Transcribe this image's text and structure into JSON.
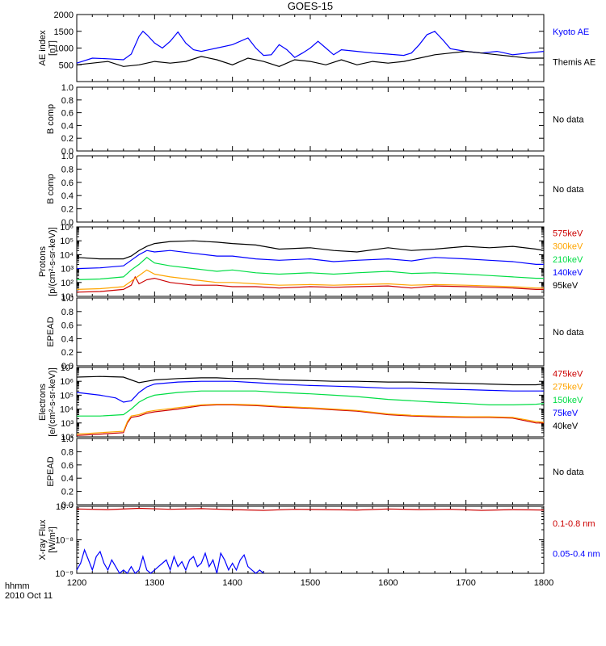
{
  "title": "GOES-15",
  "footer": {
    "time_label": "hhmm",
    "date_label": "2010 Oct 11"
  },
  "colors": {
    "black": "#000000",
    "blue": "#0000ff",
    "red": "#cc0000",
    "orange": "#ffa500",
    "green": "#00dd44"
  },
  "chart_data": [
    {
      "id": "ae",
      "type": "line",
      "ylabel": [
        "AE index",
        "[nT]"
      ],
      "yscale": "linear",
      "ylim": [
        0,
        2000
      ],
      "yticks": [
        500,
        1000,
        1500,
        2000
      ],
      "xlim": [
        1200,
        1800
      ],
      "series": [
        {
          "name": "Kyoto AE",
          "color": "#0000ff",
          "x": [
            1200,
            1220,
            1240,
            1260,
            1270,
            1280,
            1285,
            1290,
            1300,
            1310,
            1320,
            1330,
            1340,
            1350,
            1360,
            1380,
            1400,
            1420,
            1430,
            1440,
            1450,
            1460,
            1470,
            1480,
            1490,
            1500,
            1510,
            1520,
            1530,
            1540,
            1560,
            1580,
            1600,
            1620,
            1630,
            1640,
            1650,
            1660,
            1670,
            1680,
            1700,
            1720,
            1740,
            1760,
            1780,
            1800
          ],
          "y": [
            550,
            700,
            680,
            650,
            820,
            1350,
            1500,
            1400,
            1150,
            1000,
            1200,
            1480,
            1150,
            950,
            900,
            1000,
            1100,
            1300,
            1000,
            780,
            800,
            1100,
            950,
            720,
            850,
            1000,
            1200,
            1000,
            800,
            950,
            900,
            850,
            820,
            780,
            850,
            1100,
            1400,
            1500,
            1250,
            980,
            900,
            850,
            900,
            800,
            850,
            900
          ]
        },
        {
          "name": "Themis AE",
          "color": "#000000",
          "x": [
            1200,
            1220,
            1240,
            1260,
            1280,
            1300,
            1320,
            1340,
            1360,
            1380,
            1400,
            1420,
            1440,
            1460,
            1480,
            1500,
            1520,
            1540,
            1560,
            1580,
            1600,
            1620,
            1640,
            1660,
            1680,
            1700,
            1720,
            1740,
            1760,
            1780,
            1800
          ],
          "y": [
            500,
            550,
            600,
            450,
            500,
            600,
            550,
            600,
            750,
            650,
            500,
            700,
            600,
            450,
            650,
            600,
            500,
            650,
            500,
            600,
            550,
            600,
            700,
            800,
            850,
            900,
            850,
            800,
            750,
            700,
            700
          ]
        }
      ]
    },
    {
      "id": "bcomp1",
      "type": "line",
      "ylabel": [
        "B comp"
      ],
      "yscale": "linear",
      "ylim": [
        0,
        1
      ],
      "yticks": [
        0.0,
        0.2,
        0.4,
        0.6,
        0.8,
        1.0
      ],
      "ytick_labels": [
        "0.0",
        "0.2",
        "0.4",
        "0.6",
        "0.8",
        "1.0"
      ],
      "xlim": [
        1200,
        1800
      ],
      "note": "No data",
      "series": []
    },
    {
      "id": "bcomp2",
      "type": "line",
      "ylabel": [
        "B comp"
      ],
      "yscale": "linear",
      "ylim": [
        0,
        1
      ],
      "yticks": [
        0.0,
        0.2,
        0.4,
        0.6,
        0.8,
        1.0
      ],
      "ytick_labels": [
        "0.0",
        "0.2",
        "0.4",
        "0.6",
        "0.8",
        "1.0"
      ],
      "xlim": [
        1200,
        1800
      ],
      "note": "No data",
      "series": []
    },
    {
      "id": "protons",
      "type": "line",
      "ylabel": [
        "Protons",
        "[p/(cm²-s-sr-keV)]"
      ],
      "yscale": "log",
      "ylim": [
        1,
        6
      ],
      "yticks": [
        1,
        2,
        3,
        4,
        5,
        6
      ],
      "ytick_labels": [
        "10¹",
        "10²",
        "10³",
        "10⁴",
        "10⁵",
        "10⁶"
      ],
      "xlim": [
        1200,
        1800
      ],
      "series": [
        {
          "name": "575keV",
          "color": "#cc0000",
          "x": [
            1200,
            1230,
            1260,
            1270,
            1275,
            1280,
            1290,
            1300,
            1320,
            1350,
            1380,
            1400,
            1430,
            1460,
            1500,
            1530,
            1560,
            1600,
            1630,
            1660,
            1700,
            1730,
            1760,
            1790,
            1800
          ],
          "y": [
            1.3,
            1.35,
            1.5,
            1.8,
            2.4,
            1.9,
            2.2,
            2.3,
            2.0,
            1.8,
            1.8,
            1.7,
            1.7,
            1.6,
            1.7,
            1.65,
            1.7,
            1.75,
            1.6,
            1.75,
            1.7,
            1.65,
            1.6,
            1.5,
            1.5
          ]
        },
        {
          "name": "300keV",
          "color": "#ffa500",
          "x": [
            1200,
            1230,
            1260,
            1270,
            1280,
            1290,
            1300,
            1320,
            1350,
            1380,
            1400,
            1430,
            1460,
            1500,
            1530,
            1560,
            1600,
            1630,
            1660,
            1700,
            1730,
            1760,
            1790,
            1800
          ],
          "y": [
            1.5,
            1.55,
            1.7,
            2.1,
            2.5,
            2.9,
            2.6,
            2.4,
            2.2,
            2.0,
            2.0,
            1.9,
            1.8,
            1.85,
            1.8,
            1.85,
            1.9,
            1.8,
            1.85,
            1.8,
            1.75,
            1.7,
            1.6,
            1.6
          ]
        },
        {
          "name": "210keV",
          "color": "#00dd44",
          "x": [
            1200,
            1230,
            1260,
            1270,
            1280,
            1290,
            1300,
            1320,
            1350,
            1380,
            1400,
            1430,
            1460,
            1500,
            1530,
            1560,
            1600,
            1630,
            1660,
            1700,
            1730,
            1760,
            1790,
            1800
          ],
          "y": [
            2.2,
            2.25,
            2.4,
            2.9,
            3.3,
            3.8,
            3.4,
            3.2,
            3.0,
            2.8,
            2.9,
            2.7,
            2.6,
            2.7,
            2.6,
            2.7,
            2.8,
            2.65,
            2.7,
            2.6,
            2.5,
            2.4,
            2.3,
            2.3
          ]
        },
        {
          "name": "140keV",
          "color": "#0000ff",
          "x": [
            1200,
            1230,
            1260,
            1270,
            1280,
            1290,
            1300,
            1320,
            1350,
            1380,
            1400,
            1430,
            1460,
            1500,
            1530,
            1560,
            1600,
            1630,
            1660,
            1700,
            1730,
            1760,
            1790,
            1800
          ],
          "y": [
            3.0,
            3.05,
            3.2,
            3.6,
            4.0,
            4.3,
            4.2,
            4.3,
            4.1,
            3.9,
            3.9,
            3.7,
            3.6,
            3.7,
            3.5,
            3.6,
            3.7,
            3.55,
            3.8,
            3.7,
            3.6,
            3.5,
            3.3,
            3.3
          ]
        },
        {
          "name": "95keV",
          "color": "#000000",
          "x": [
            1200,
            1230,
            1260,
            1270,
            1280,
            1290,
            1300,
            1320,
            1350,
            1380,
            1400,
            1430,
            1460,
            1500,
            1530,
            1560,
            1600,
            1630,
            1660,
            1700,
            1730,
            1760,
            1790,
            1800
          ],
          "y": [
            3.8,
            3.7,
            3.7,
            3.9,
            4.3,
            4.6,
            4.8,
            4.95,
            5.0,
            4.9,
            4.8,
            4.7,
            4.4,
            4.5,
            4.3,
            4.2,
            4.5,
            4.3,
            4.4,
            4.6,
            4.5,
            4.6,
            4.4,
            4.3
          ]
        }
      ]
    },
    {
      "id": "epead1",
      "type": "line",
      "ylabel": [
        "EPEAD"
      ],
      "yscale": "linear",
      "ylim": [
        0,
        1
      ],
      "yticks": [
        0.0,
        0.2,
        0.4,
        0.6,
        0.8,
        1.0
      ],
      "ytick_labels": [
        "0.0",
        "0.2",
        "0.4",
        "0.6",
        "0.8",
        "1.0"
      ],
      "xlim": [
        1200,
        1800
      ],
      "note": "No data",
      "series": []
    },
    {
      "id": "electrons",
      "type": "line",
      "ylabel": [
        "Electrons",
        "[e/(cm²-s-sr-keV)]"
      ],
      "yscale": "log",
      "ylim": [
        2,
        7
      ],
      "yticks": [
        2,
        3,
        4,
        5,
        6,
        7
      ],
      "ytick_labels": [
        "10²",
        "10³",
        "10⁴",
        "10⁵",
        "10⁶",
        "10⁷"
      ],
      "xlim": [
        1200,
        1800
      ],
      "series": [
        {
          "name": "475keV",
          "color": "#cc0000",
          "x": [
            1200,
            1230,
            1260,
            1265,
            1270,
            1280,
            1290,
            1300,
            1330,
            1360,
            1380,
            1400,
            1430,
            1460,
            1500,
            1530,
            1560,
            1600,
            1630,
            1660,
            1700,
            1730,
            1760,
            1790,
            1800
          ],
          "y": [
            2.1,
            2.2,
            2.3,
            3.0,
            3.4,
            3.5,
            3.7,
            3.8,
            4.0,
            4.25,
            4.3,
            4.3,
            4.25,
            4.15,
            4.05,
            3.95,
            3.85,
            3.6,
            3.5,
            3.45,
            3.4,
            3.4,
            3.35,
            3.0,
            3.0
          ]
        },
        {
          "name": "275keV",
          "color": "#ffa500",
          "x": [
            1200,
            1230,
            1260,
            1265,
            1270,
            1280,
            1290,
            1300,
            1330,
            1360,
            1380,
            1400,
            1430,
            1460,
            1500,
            1530,
            1560,
            1600,
            1630,
            1660,
            1700,
            1730,
            1760,
            1790,
            1800
          ],
          "y": [
            2.2,
            2.3,
            2.4,
            3.1,
            3.5,
            3.6,
            3.8,
            3.9,
            4.1,
            4.3,
            4.35,
            4.35,
            4.3,
            4.2,
            4.1,
            4.0,
            3.9,
            3.65,
            3.55,
            3.5,
            3.45,
            3.45,
            3.4,
            3.1,
            3.05
          ]
        },
        {
          "name": "150keV",
          "color": "#00dd44",
          "x": [
            1200,
            1230,
            1260,
            1270,
            1280,
            1290,
            1300,
            1330,
            1360,
            1380,
            1400,
            1430,
            1460,
            1500,
            1530,
            1560,
            1600,
            1630,
            1660,
            1700,
            1730,
            1760,
            1790,
            1800
          ],
          "y": [
            3.5,
            3.5,
            3.6,
            4.0,
            4.5,
            4.8,
            5.0,
            5.2,
            5.3,
            5.3,
            5.3,
            5.3,
            5.2,
            5.1,
            5.0,
            4.9,
            4.7,
            4.6,
            4.5,
            4.4,
            4.3,
            4.3,
            4.35,
            4.4
          ]
        },
        {
          "name": "75keV",
          "color": "#0000ff",
          "x": [
            1200,
            1230,
            1250,
            1260,
            1270,
            1280,
            1290,
            1300,
            1330,
            1360,
            1380,
            1400,
            1430,
            1460,
            1500,
            1530,
            1560,
            1600,
            1630,
            1660,
            1700,
            1730,
            1760,
            1790,
            1800
          ],
          "y": [
            5.2,
            5.0,
            4.8,
            4.5,
            4.6,
            5.2,
            5.6,
            5.8,
            5.95,
            6.0,
            6.0,
            6.0,
            5.9,
            5.8,
            5.7,
            5.65,
            5.6,
            5.5,
            5.5,
            5.45,
            5.4,
            5.35,
            5.3,
            5.3,
            5.3
          ]
        },
        {
          "name": "40keV",
          "color": "#000000",
          "x": [
            1200,
            1230,
            1260,
            1270,
            1280,
            1290,
            1300,
            1330,
            1360,
            1380,
            1400,
            1430,
            1460,
            1500,
            1530,
            1560,
            1600,
            1630,
            1660,
            1700,
            1730,
            1760,
            1790,
            1800
          ],
          "y": [
            6.3,
            6.35,
            6.3,
            6.1,
            5.9,
            6.0,
            6.1,
            6.2,
            6.25,
            6.25,
            6.2,
            6.2,
            6.1,
            6.05,
            6.0,
            6.0,
            5.95,
            5.95,
            5.9,
            5.85,
            5.8,
            5.75,
            5.75,
            5.8
          ]
        }
      ]
    },
    {
      "id": "epead2",
      "type": "line",
      "ylabel": [
        "EPEAD"
      ],
      "yscale": "linear",
      "ylim": [
        0,
        1
      ],
      "yticks": [
        0.0,
        0.2,
        0.4,
        0.6,
        0.8,
        1.0
      ],
      "ytick_labels": [
        "0.0",
        "0.2",
        "0.4",
        "0.6",
        "0.8",
        "1.0"
      ],
      "xlim": [
        1200,
        1800
      ],
      "note": "No data",
      "series": []
    },
    {
      "id": "xray",
      "type": "line",
      "ylabel": [
        "X-ray Flux",
        "[W/m²]"
      ],
      "yscale": "log",
      "ylim": [
        -9,
        -7
      ],
      "yticks": [
        -9,
        -8,
        -7
      ],
      "ytick_labels": [
        "10⁻⁹",
        "10⁻⁸",
        "10⁻⁷"
      ],
      "xlim": [
        1200,
        1800
      ],
      "series": [
        {
          "name": "0.1-0.8 nm",
          "color": "#cc0000",
          "x": [
            1200,
            1240,
            1280,
            1320,
            1360,
            1400,
            1440,
            1480,
            1520,
            1560,
            1600,
            1640,
            1680,
            1720,
            1760,
            1800
          ],
          "y": [
            -7.08,
            -7.1,
            -7.06,
            -7.09,
            -7.07,
            -7.1,
            -7.12,
            -7.09,
            -7.1,
            -7.11,
            -7.08,
            -7.1,
            -7.09,
            -7.12,
            -7.1,
            -7.11
          ]
        },
        {
          "name": "0.05-0.4 nm",
          "color": "#0000ff",
          "x": [
            1200,
            1205,
            1210,
            1215,
            1220,
            1225,
            1230,
            1235,
            1240,
            1245,
            1250,
            1255,
            1260,
            1265,
            1270,
            1275,
            1280,
            1285,
            1290,
            1295,
            1300,
            1305,
            1310,
            1315,
            1320,
            1325,
            1330,
            1335,
            1340,
            1345,
            1350,
            1355,
            1360,
            1365,
            1370,
            1375,
            1380,
            1385,
            1390,
            1395,
            1400,
            1405,
            1410,
            1415,
            1420,
            1425,
            1430,
            1435,
            1440
          ],
          "y": [
            -8.9,
            -8.7,
            -8.3,
            -8.6,
            -8.9,
            -8.5,
            -8.35,
            -8.7,
            -8.9,
            -8.6,
            -8.8,
            -9.0,
            -8.9,
            -9.0,
            -8.8,
            -9.0,
            -8.9,
            -8.5,
            -8.9,
            -9.0,
            -8.9,
            -8.8,
            -8.7,
            -8.6,
            -8.9,
            -8.5,
            -8.8,
            -8.65,
            -8.9,
            -8.6,
            -8.5,
            -8.8,
            -8.7,
            -8.4,
            -8.8,
            -8.6,
            -9.0,
            -8.4,
            -8.6,
            -8.9,
            -8.7,
            -8.9,
            -8.6,
            -8.45,
            -8.8,
            -8.9,
            -9.0,
            -8.9,
            -9.0
          ]
        }
      ]
    }
  ],
  "x_axis": {
    "ticks": [
      1200,
      1300,
      1400,
      1500,
      1600,
      1700,
      1800
    ]
  }
}
